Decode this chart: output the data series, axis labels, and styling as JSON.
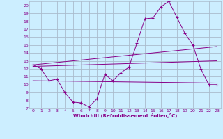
{
  "title": "",
  "xlabel": "Windchill (Refroidissement éolien,°C)",
  "ylabel": "",
  "bg_color": "#cceeff",
  "line_color": "#880088",
  "grid_color": "#aabbcc",
  "xlim": [
    -0.5,
    23.5
  ],
  "ylim": [
    7,
    20.5
  ],
  "xticks": [
    0,
    1,
    2,
    3,
    4,
    5,
    6,
    7,
    8,
    9,
    10,
    11,
    12,
    13,
    14,
    15,
    16,
    17,
    18,
    19,
    20,
    21,
    22,
    23
  ],
  "yticks": [
    7,
    8,
    9,
    10,
    11,
    12,
    13,
    14,
    15,
    16,
    17,
    18,
    19,
    20
  ],
  "series": [
    {
      "x": [
        0,
        1,
        2,
        3,
        4,
        5,
        6,
        7,
        8,
        9,
        10,
        11,
        12,
        13,
        14,
        15,
        16,
        17,
        18,
        19,
        20,
        21,
        22,
        23
      ],
      "y": [
        12.5,
        12.0,
        10.5,
        10.7,
        9.0,
        7.8,
        7.7,
        7.2,
        8.2,
        11.3,
        10.5,
        11.5,
        12.2,
        15.2,
        18.3,
        18.4,
        19.8,
        20.5,
        18.5,
        16.5,
        15.0,
        12.0,
        10.0,
        10.0
      ],
      "has_markers": true
    },
    {
      "x": [
        0,
        23
      ],
      "y": [
        12.5,
        14.8
      ],
      "has_markers": false
    },
    {
      "x": [
        0,
        23
      ],
      "y": [
        12.3,
        13.0
      ],
      "has_markers": false
    },
    {
      "x": [
        0,
        23
      ],
      "y": [
        10.5,
        10.2
      ],
      "has_markers": false
    }
  ]
}
